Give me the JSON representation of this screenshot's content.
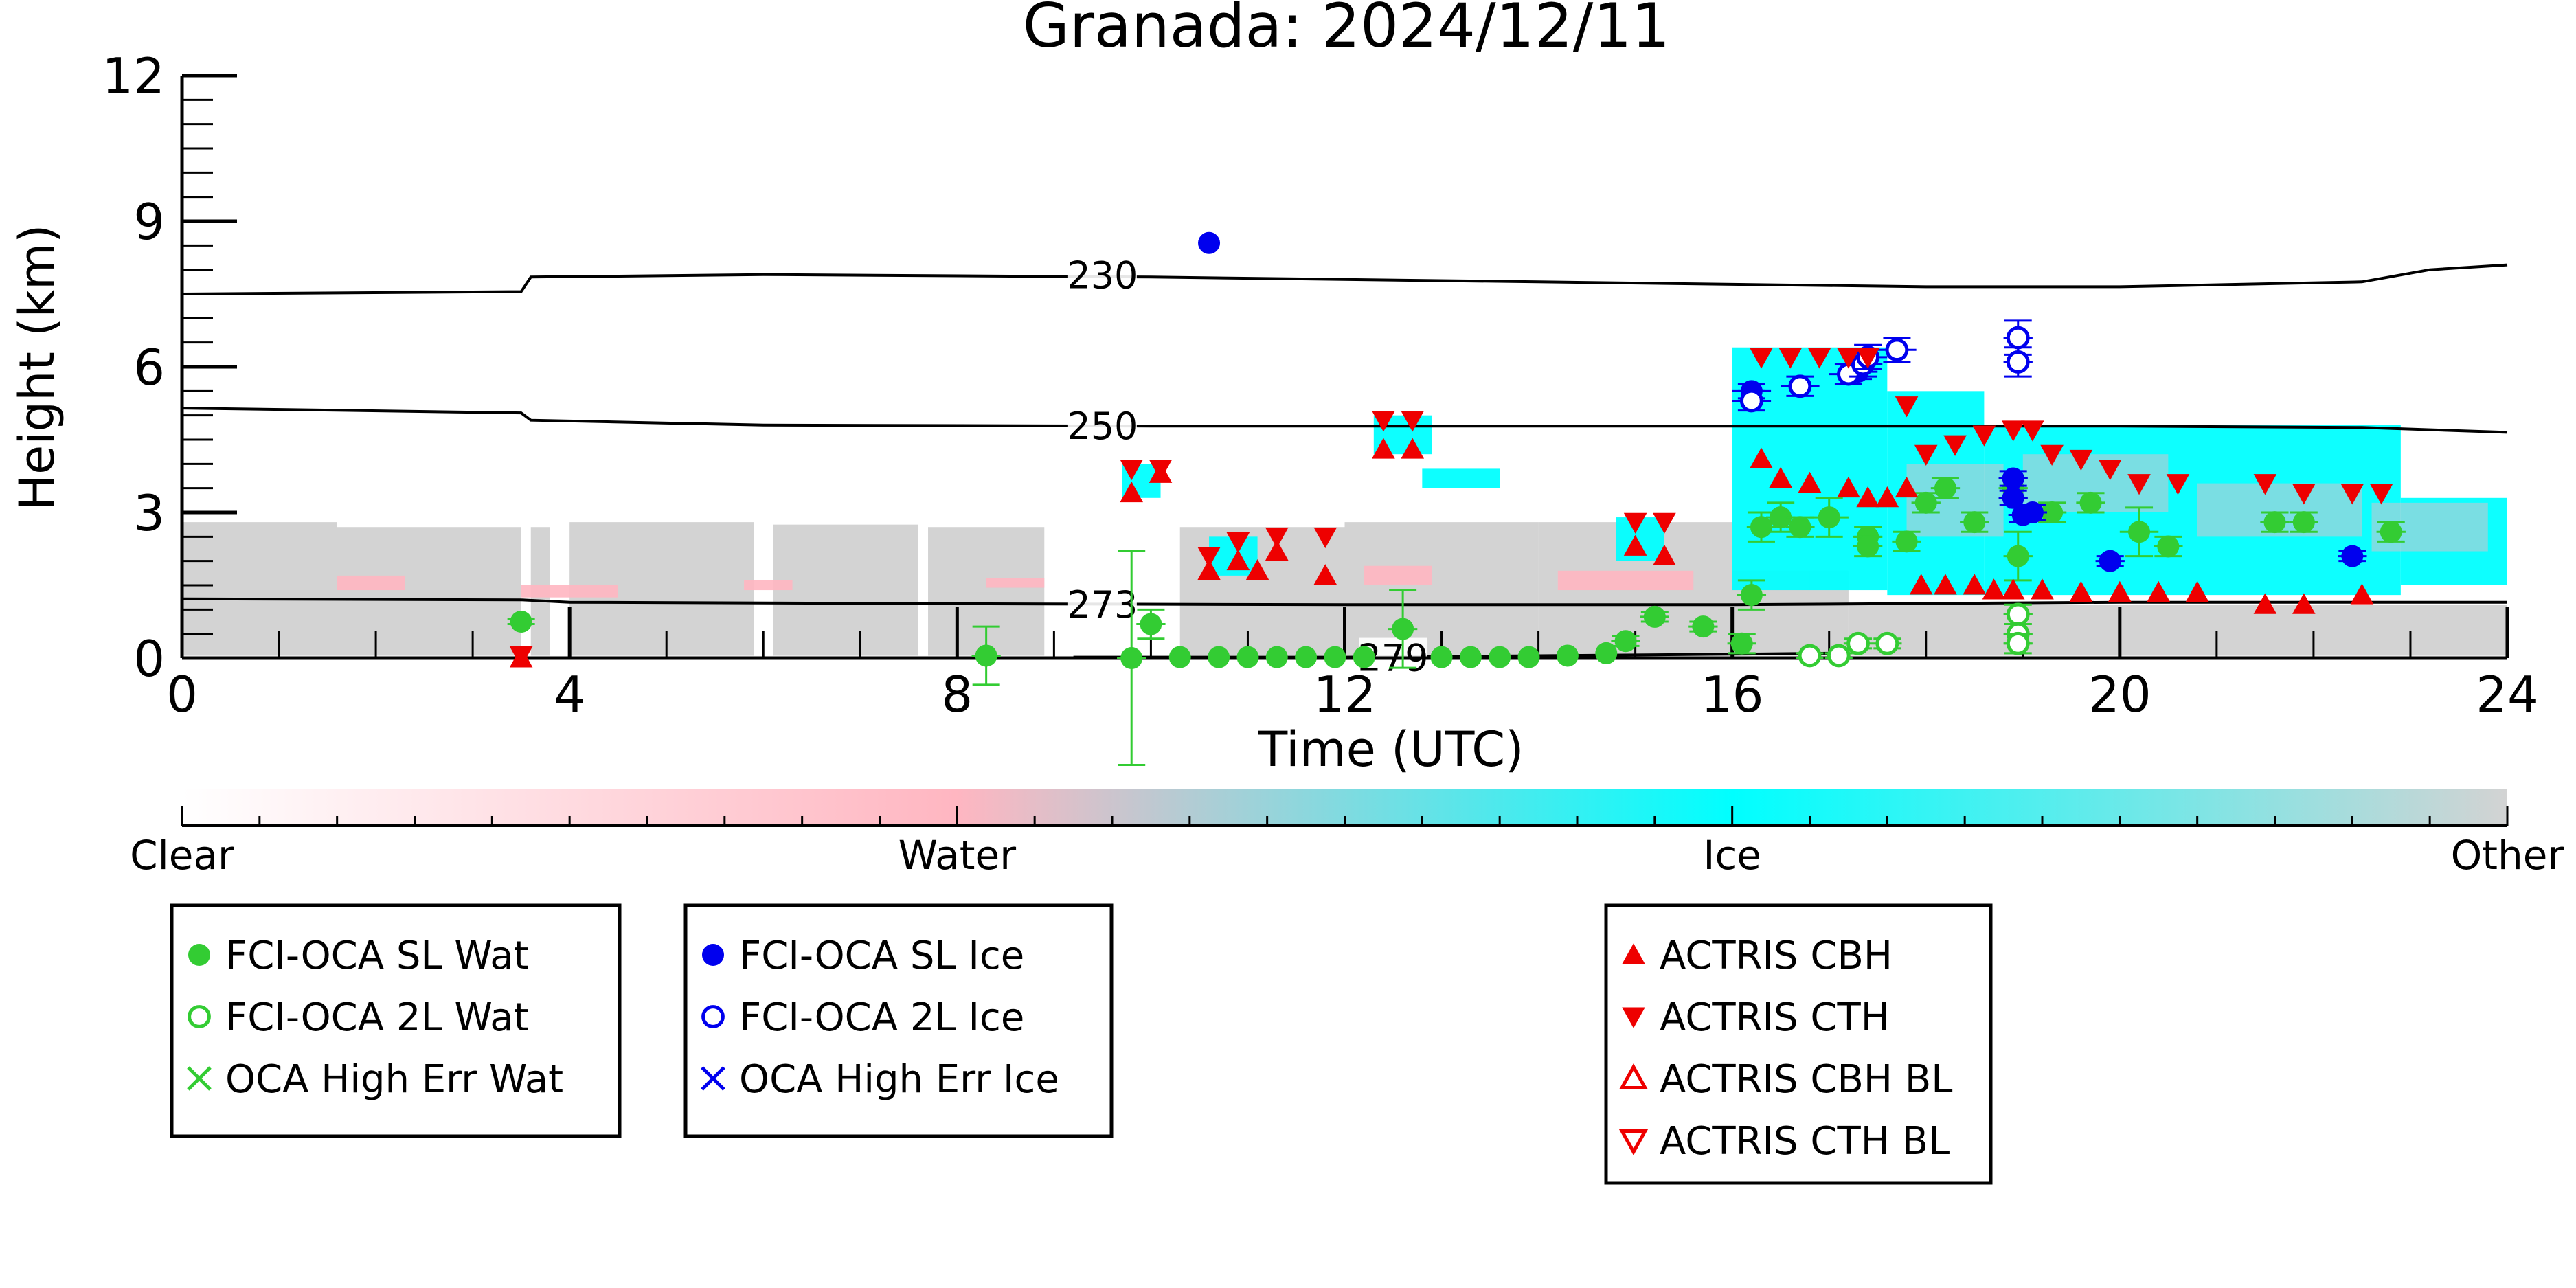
{
  "chart_data": {
    "type": "scatter",
    "title": "Granada: 2024/12/11",
    "xlabel": "Time (UTC)",
    "ylabel": "Height (km)",
    "xlim": [
      0,
      24
    ],
    "ylim": [
      0,
      12
    ],
    "xticks": [
      0,
      4,
      8,
      12,
      16,
      20,
      24
    ],
    "yticks": [
      0,
      3,
      6,
      9,
      12
    ],
    "grid": false,
    "colorbar": {
      "labels": [
        "Clear",
        "Water",
        "Ice",
        "Other"
      ],
      "colors": [
        "#ffffff",
        "#ffb6c1",
        "#00ffff",
        "#d3d3d3"
      ]
    },
    "isotherms": [
      {
        "label": "230",
        "label_x": 9.5,
        "points": [
          [
            0,
            7.5
          ],
          [
            3.5,
            7.55
          ],
          [
            3.6,
            7.85
          ],
          [
            6,
            7.9
          ],
          [
            10,
            7.85
          ],
          [
            14,
            7.75
          ],
          [
            18,
            7.65
          ],
          [
            20,
            7.65
          ],
          [
            22.5,
            7.75
          ],
          [
            23.2,
            8.0
          ],
          [
            24,
            8.1
          ]
        ]
      },
      {
        "label": "250",
        "label_x": 9.5,
        "points": [
          [
            0,
            5.15
          ],
          [
            3.5,
            5.05
          ],
          [
            3.6,
            4.9
          ],
          [
            6,
            4.8
          ],
          [
            10,
            4.78
          ],
          [
            14,
            4.78
          ],
          [
            18,
            4.78
          ],
          [
            20,
            4.78
          ],
          [
            22.5,
            4.75
          ],
          [
            24,
            4.65
          ]
        ]
      },
      {
        "label": "273",
        "label_x": 9.5,
        "points": [
          [
            0,
            1.22
          ],
          [
            3.5,
            1.2
          ],
          [
            4,
            1.15
          ],
          [
            8,
            1.12
          ],
          [
            12,
            1.1
          ],
          [
            16,
            1.1
          ],
          [
            20,
            1.15
          ],
          [
            24,
            1.15
          ]
        ]
      },
      {
        "label": "279",
        "label_x": 12.5,
        "points": [
          [
            9.2,
            0.02
          ],
          [
            12,
            0.02
          ],
          [
            14,
            0.05
          ],
          [
            16,
            0.08
          ],
          [
            17,
            0.1
          ]
        ]
      }
    ],
    "background": {
      "other_segments": [
        [
          0,
          1.6,
          0.05,
          2.8
        ],
        [
          1.6,
          3.5,
          0.05,
          2.7
        ],
        [
          3.6,
          3.8,
          0.05,
          2.7
        ],
        [
          4.0,
          5.9,
          0.05,
          2.8
        ],
        [
          6.1,
          7.6,
          0.05,
          2.75
        ],
        [
          7.7,
          8.9,
          0.05,
          2.7
        ],
        [
          10.3,
          12.0,
          0.05,
          2.7
        ],
        [
          12.0,
          14.0,
          0.05,
          2.8
        ],
        [
          14.0,
          16.0,
          0.05,
          2.8
        ],
        [
          16.0,
          17.2,
          0.05,
          1.8
        ],
        [
          17.2,
          24.0,
          0.05,
          1.1
        ]
      ],
      "water_patches": [
        [
          1.6,
          2.3,
          1.4,
          1.7
        ],
        [
          3.5,
          4.5,
          1.25,
          1.5
        ],
        [
          5.8,
          6.3,
          1.4,
          1.6
        ],
        [
          8.3,
          8.9,
          1.45,
          1.65
        ],
        [
          12.2,
          12.9,
          1.5,
          1.9
        ],
        [
          14.2,
          15.6,
          1.4,
          1.8
        ],
        [
          16.0,
          16.8,
          1.4,
          1.8
        ]
      ],
      "ice_patches": [
        [
          9.7,
          10.1,
          3.3,
          4.0
        ],
        [
          10.6,
          11.1,
          1.7,
          2.5
        ],
        [
          12.3,
          12.9,
          4.2,
          5.0
        ],
        [
          12.8,
          13.6,
          3.5,
          3.9
        ],
        [
          14.8,
          15.3,
          2.0,
          2.9
        ],
        [
          16.0,
          17.6,
          1.4,
          6.4
        ],
        [
          17.6,
          18.6,
          1.3,
          5.5
        ],
        [
          18.6,
          22.9,
          1.3,
          4.8
        ],
        [
          22.9,
          24.0,
          1.5,
          3.3
        ]
      ],
      "pink_streaks": [
        [
          17.8,
          18.8,
          2.5,
          4.0
        ],
        [
          19.0,
          20.5,
          3.0,
          4.2
        ],
        [
          20.8,
          22.5,
          2.5,
          3.6
        ],
        [
          22.6,
          23.8,
          2.2,
          3.2
        ]
      ]
    },
    "series": [
      {
        "name": "FCI-OCA SL Wat",
        "marker": "filled-circle",
        "color": "#33cc33",
        "points": [
          [
            3.5,
            0.75,
            0.1,
            0.05
          ],
          [
            8.3,
            0.05,
            0.15,
            0.6
          ],
          [
            9.8,
            0.0,
            0.15,
            2.2
          ],
          [
            10.0,
            0.7,
            0.15,
            0.3
          ],
          [
            10.3,
            0.02,
            0.1,
            0
          ],
          [
            10.7,
            0.02,
            0.1,
            0
          ],
          [
            11.0,
            0.02,
            0.1,
            0
          ],
          [
            11.3,
            0.02,
            0.1,
            0
          ],
          [
            11.6,
            0.02,
            0.1,
            0
          ],
          [
            11.9,
            0.02,
            0.1,
            0
          ],
          [
            12.2,
            0.02,
            0.1,
            0
          ],
          [
            12.6,
            0.6,
            0.15,
            0.8
          ],
          [
            13.0,
            0.02,
            0.1,
            0
          ],
          [
            13.3,
            0.02,
            0.1,
            0
          ],
          [
            13.6,
            0.02,
            0.1,
            0
          ],
          [
            13.9,
            0.02,
            0.1,
            0
          ],
          [
            14.3,
            0.05,
            0.1,
            0
          ],
          [
            14.7,
            0.1,
            0.1,
            0
          ],
          [
            14.9,
            0.35,
            0.15,
            0.1
          ],
          [
            15.2,
            0.85,
            0.15,
            0.1
          ],
          [
            15.7,
            0.65,
            0.15,
            0.1
          ],
          [
            16.1,
            0.3,
            0.15,
            0.2
          ],
          [
            16.2,
            1.3,
            0.15,
            0.3
          ],
          [
            16.3,
            2.7,
            0.15,
            0.3
          ],
          [
            16.5,
            2.9,
            0.15,
            0.3
          ],
          [
            16.7,
            2.7,
            0.15,
            0.2
          ],
          [
            17.0,
            2.9,
            0.2,
            0.4
          ],
          [
            17.4,
            2.5,
            0.15,
            0.2
          ],
          [
            17.4,
            2.3,
            0.15,
            0.2
          ],
          [
            17.8,
            2.4,
            0.15,
            0.2
          ],
          [
            18.0,
            3.2,
            0.15,
            0.2
          ],
          [
            18.2,
            3.5,
            0.15,
            0.2
          ],
          [
            18.5,
            2.8,
            0.15,
            0.2
          ],
          [
            18.9,
            3.5,
            0.15,
            0.2
          ],
          [
            18.95,
            2.1,
            0.15,
            0.5
          ],
          [
            19.3,
            3.0,
            0.15,
            0.2
          ],
          [
            19.7,
            3.2,
            0.15,
            0.2
          ],
          [
            20.2,
            2.6,
            0.2,
            0.5
          ],
          [
            20.5,
            2.3,
            0.15,
            0.2
          ],
          [
            21.6,
            2.8,
            0.15,
            0.2
          ],
          [
            21.9,
            2.8,
            0.15,
            0.2
          ],
          [
            22.8,
            2.6,
            0.15,
            0.2
          ]
        ]
      },
      {
        "name": "FCI-OCA 2L Wat",
        "marker": "open-circle",
        "color": "#33cc33",
        "points": [
          [
            16.8,
            0.05,
            0.1,
            0.05
          ],
          [
            17.1,
            0.05,
            0.1,
            0.05
          ],
          [
            17.3,
            0.3,
            0.15,
            0.1
          ],
          [
            17.6,
            0.3,
            0.15,
            0.1
          ],
          [
            18.95,
            0.9,
            0.15,
            0.2
          ],
          [
            18.95,
            0.5,
            0.15,
            0.2
          ],
          [
            18.95,
            0.3,
            0.15,
            0.2
          ]
        ]
      },
      {
        "name": "OCA High Err Wat",
        "marker": "x",
        "color": "#33cc33",
        "points": []
      },
      {
        "name": "FCI-OCA SL Ice",
        "marker": "filled-circle",
        "color": "#0000ee",
        "points": [
          [
            10.6,
            8.55,
            0,
            0
          ],
          [
            16.2,
            5.5,
            0.2,
            0.15
          ],
          [
            17.3,
            5.9,
            0.2,
            0.15
          ],
          [
            18.9,
            3.7,
            0.15,
            0.15
          ],
          [
            18.9,
            3.3,
            0.15,
            0.15
          ],
          [
            19.0,
            2.95,
            0.15,
            0.15
          ],
          [
            19.1,
            3.0,
            0.15,
            0.15
          ],
          [
            19.9,
            2.0,
            0.15,
            0.1
          ],
          [
            22.4,
            2.1,
            0.15,
            0.1
          ]
        ]
      },
      {
        "name": "FCI-OCA 2L Ice",
        "marker": "open-circle",
        "color": "#0000ee",
        "points": [
          [
            16.2,
            5.3,
            0.2,
            0.2
          ],
          [
            16.7,
            5.6,
            0.2,
            0.2
          ],
          [
            17.2,
            5.85,
            0.2,
            0.2
          ],
          [
            17.35,
            6.05,
            0.2,
            0.25
          ],
          [
            17.4,
            6.2,
            0.2,
            0.25
          ],
          [
            17.7,
            6.35,
            0.2,
            0.25
          ],
          [
            18.95,
            6.6,
            0.15,
            0.35
          ],
          [
            18.95,
            6.1,
            0.15,
            0.3
          ]
        ]
      },
      {
        "name": "OCA High Err Ice",
        "marker": "x",
        "color": "#0000ee",
        "points": []
      },
      {
        "name": "ACTRIS CBH",
        "marker": "filled-triangle-up",
        "color": "#ee0000",
        "points": [
          [
            3.5,
            0.0
          ],
          [
            9.8,
            3.4
          ],
          [
            10.1,
            3.8
          ],
          [
            10.6,
            1.8
          ],
          [
            10.9,
            2.0
          ],
          [
            11.1,
            1.8
          ],
          [
            11.3,
            2.2
          ],
          [
            11.8,
            1.7
          ],
          [
            12.4,
            4.3
          ],
          [
            12.7,
            4.3
          ],
          [
            15.0,
            2.3
          ],
          [
            15.3,
            2.1
          ],
          [
            16.3,
            4.1
          ],
          [
            16.5,
            3.7
          ],
          [
            16.8,
            3.6
          ],
          [
            17.2,
            3.5
          ],
          [
            17.4,
            3.3
          ],
          [
            17.6,
            3.3
          ],
          [
            17.8,
            3.5
          ],
          [
            17.95,
            1.5
          ],
          [
            18.2,
            1.5
          ],
          [
            18.5,
            1.5
          ],
          [
            18.7,
            1.4
          ],
          [
            18.9,
            1.4
          ],
          [
            19.2,
            1.4
          ],
          [
            19.6,
            1.35
          ],
          [
            20.0,
            1.35
          ],
          [
            20.4,
            1.35
          ],
          [
            20.8,
            1.35
          ],
          [
            21.5,
            1.1
          ],
          [
            21.9,
            1.1
          ],
          [
            22.5,
            1.3
          ]
        ]
      },
      {
        "name": "ACTRIS CTH",
        "marker": "filled-triangle-down",
        "color": "#ee0000",
        "points": [
          [
            3.5,
            0.05
          ],
          [
            9.8,
            3.9
          ],
          [
            10.1,
            3.9
          ],
          [
            10.6,
            2.1
          ],
          [
            10.9,
            2.4
          ],
          [
            11.3,
            2.5
          ],
          [
            11.8,
            2.5
          ],
          [
            12.4,
            4.9
          ],
          [
            12.7,
            4.9
          ],
          [
            15.0,
            2.8
          ],
          [
            15.3,
            2.8
          ],
          [
            16.3,
            6.2
          ],
          [
            16.6,
            6.2
          ],
          [
            16.9,
            6.2
          ],
          [
            17.2,
            6.2
          ],
          [
            17.4,
            6.2
          ],
          [
            17.8,
            5.2
          ],
          [
            18.0,
            4.2
          ],
          [
            18.3,
            4.4
          ],
          [
            18.6,
            4.6
          ],
          [
            18.9,
            4.7
          ],
          [
            19.1,
            4.7
          ],
          [
            19.3,
            4.2
          ],
          [
            19.6,
            4.1
          ],
          [
            19.9,
            3.9
          ],
          [
            20.2,
            3.6
          ],
          [
            20.6,
            3.6
          ],
          [
            21.5,
            3.6
          ],
          [
            21.9,
            3.4
          ],
          [
            22.4,
            3.4
          ],
          [
            22.7,
            3.4
          ]
        ]
      },
      {
        "name": "ACTRIS CBH BL",
        "marker": "open-triangle-up",
        "color": "#ee0000",
        "points": []
      },
      {
        "name": "ACTRIS CTH BL",
        "marker": "open-triangle-down",
        "color": "#ee0000",
        "points": []
      }
    ],
    "legends": [
      {
        "entries": [
          "FCI-OCA SL Wat",
          "FCI-OCA 2L Wat",
          "OCA High Err Wat"
        ]
      },
      {
        "entries": [
          "FCI-OCA SL Ice",
          "FCI-OCA 2L Ice",
          "OCA High Err Ice"
        ]
      },
      {
        "entries": [
          "ACTRIS CBH",
          "ACTRIS CTH",
          "ACTRIS CBH BL",
          "ACTRIS CTH BL"
        ]
      }
    ]
  }
}
